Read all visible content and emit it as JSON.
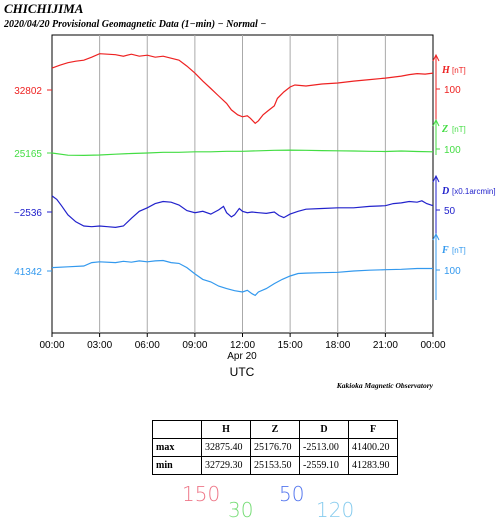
{
  "header": {
    "station": "CHICHIJIMA",
    "subtitle": "2020/04/20  Provisional Geomagnetic Data (1−min)  − Normal −"
  },
  "chart_data": {
    "type": "line",
    "x_ticks": [
      "00:00",
      "03:00",
      "06:00",
      "09:00",
      "12:00",
      "15:00",
      "18:00",
      "21:00",
      "00:00"
    ],
    "x_date_label": "Apr 20",
    "xlabel": "UTC",
    "xlim_hours": [
      0,
      24
    ],
    "grid": true,
    "credit": "Kakioka Magnetic Observatory",
    "series": [
      {
        "name": "H",
        "unit": "[nT]",
        "left_label": "32802",
        "left_value": 32802,
        "scale_label": "100",
        "scale_nT": 100,
        "color": "#ee2222",
        "ylim": [
          32700,
          32900
        ],
        "x": [
          0,
          0.5,
          1,
          1.5,
          2,
          2.5,
          3,
          4,
          4.5,
          5,
          5.5,
          6,
          6.5,
          7,
          8,
          8.5,
          9,
          9.5,
          10,
          10.5,
          11,
          11.3,
          11.7,
          12,
          12.3,
          12.5,
          12.8,
          13,
          13.3,
          13.6,
          14,
          14.2,
          14.6,
          15,
          15.3,
          16,
          17,
          18,
          19,
          20,
          21,
          21.5,
          22,
          22.5,
          23,
          23.5,
          24
        ],
        "y": [
          32846,
          32852,
          32857,
          32860,
          32862,
          32868,
          32875,
          32873,
          32870,
          32874,
          32870,
          32872,
          32868,
          32870,
          32862,
          32850,
          32836,
          32820,
          32805,
          32790,
          32775,
          32762,
          32752,
          32748,
          32750,
          32745,
          32735,
          32740,
          32752,
          32760,
          32770,
          32785,
          32798,
          32808,
          32812,
          32810,
          32814,
          32816,
          32820,
          32823,
          32826,
          32828,
          32830,
          32833,
          32835,
          32834,
          32836
        ]
      },
      {
        "name": "Z",
        "unit": "[nT]",
        "left_label": "25165",
        "left_value": 25165,
        "scale_label": "100",
        "scale_nT": 100,
        "color": "#44dd44",
        "ylim": [
          25100,
          25300
        ],
        "x": [
          0,
          1,
          2,
          3,
          4,
          5,
          6,
          7,
          8,
          9,
          10,
          11,
          12,
          13,
          14,
          15,
          16,
          17,
          18,
          19,
          20,
          21,
          22,
          23,
          24
        ],
        "y": [
          25165,
          25156,
          25155,
          25157,
          25160,
          25163,
          25165,
          25168,
          25168,
          25170,
          25170,
          25172,
          25172,
          25174,
          25176,
          25177,
          25176,
          25175,
          25174,
          25173,
          25172,
          25171,
          25173,
          25171,
          25170
        ]
      },
      {
        "name": "D",
        "unit": "[x0.1arcmin]",
        "left_label": "−2536",
        "left_value": -2536,
        "scale_label": "50",
        "scale_value": 50,
        "color": "#2222cc",
        "ylim": [
          -2580,
          -2480
        ],
        "x": [
          0,
          0.3,
          0.6,
          1,
          1.5,
          2,
          2.5,
          3,
          3.5,
          4,
          4.5,
          5,
          5.5,
          6,
          6.5,
          7,
          7.5,
          8,
          8.5,
          9,
          9.5,
          10,
          10.5,
          10.8,
          11,
          11.3,
          11.5,
          11.8,
          12,
          12.3,
          12.6,
          13,
          13.5,
          14,
          14.3,
          14.6,
          15,
          15.5,
          16,
          17,
          18,
          19,
          20,
          21,
          21.5,
          22,
          22.5,
          23,
          23.3,
          23.6,
          24
        ],
        "y": [
          -2513,
          -2518,
          -2527,
          -2540,
          -2550,
          -2556,
          -2557,
          -2556,
          -2557,
          -2558,
          -2556,
          -2545,
          -2535,
          -2530,
          -2524,
          -2521,
          -2522,
          -2526,
          -2534,
          -2537,
          -2535,
          -2539,
          -2533,
          -2528,
          -2537,
          -2543,
          -2540,
          -2531,
          -2535,
          -2537,
          -2536,
          -2537,
          -2538,
          -2536,
          -2541,
          -2544,
          -2539,
          -2535,
          -2532,
          -2531,
          -2530,
          -2530,
          -2528,
          -2527,
          -2524,
          -2523,
          -2521,
          -2522,
          -2520,
          -2524,
          -2527
        ]
      },
      {
        "name": "F",
        "unit": "[nT]",
        "left_label": "41342",
        "left_value": 41342,
        "scale_label": "100",
        "scale_nT": 100,
        "color": "#3399ee",
        "ylim": [
          41250,
          41450
        ],
        "x": [
          0,
          1,
          2,
          2.5,
          3,
          4,
          4.5,
          5,
          5.5,
          6,
          6.5,
          7,
          7.5,
          8,
          8.5,
          9,
          9.5,
          10,
          10.5,
          11,
          11.5,
          12,
          12.3,
          12.6,
          12.8,
          13,
          13.5,
          14,
          14.5,
          15,
          15.5,
          16,
          17,
          18,
          19,
          20,
          21,
          22,
          23,
          24
        ],
        "y": [
          41350,
          41352,
          41354,
          41362,
          41364,
          41362,
          41365,
          41363,
          41366,
          41364,
          41366,
          41367,
          41362,
          41360,
          41350,
          41335,
          41322,
          41316,
          41306,
          41300,
          41295,
          41292,
          41296,
          41288,
          41284,
          41292,
          41300,
          41312,
          41322,
          41330,
          41336,
          41337,
          41338,
          41339,
          41342,
          41344,
          41345,
          41346,
          41348,
          41348
        ]
      }
    ],
    "stats": {
      "columns": [
        "H",
        "Z",
        "D",
        "F"
      ],
      "rows": [
        {
          "label": "max",
          "values": [
            "32875.40",
            "25176.70",
            "-2513.00",
            "41400.20"
          ]
        },
        {
          "label": "min",
          "values": [
            "32729.30",
            "25153.50",
            "-2559.10",
            "41283.90"
          ]
        }
      ]
    },
    "scale_values": [
      {
        "text": "150",
        "color": "#ee7788"
      },
      {
        "text": "30",
        "color": "#77dd77"
      },
      {
        "text": "50",
        "color": "#5577ee"
      },
      {
        "text": "120",
        "color": "#88ccee"
      }
    ]
  }
}
